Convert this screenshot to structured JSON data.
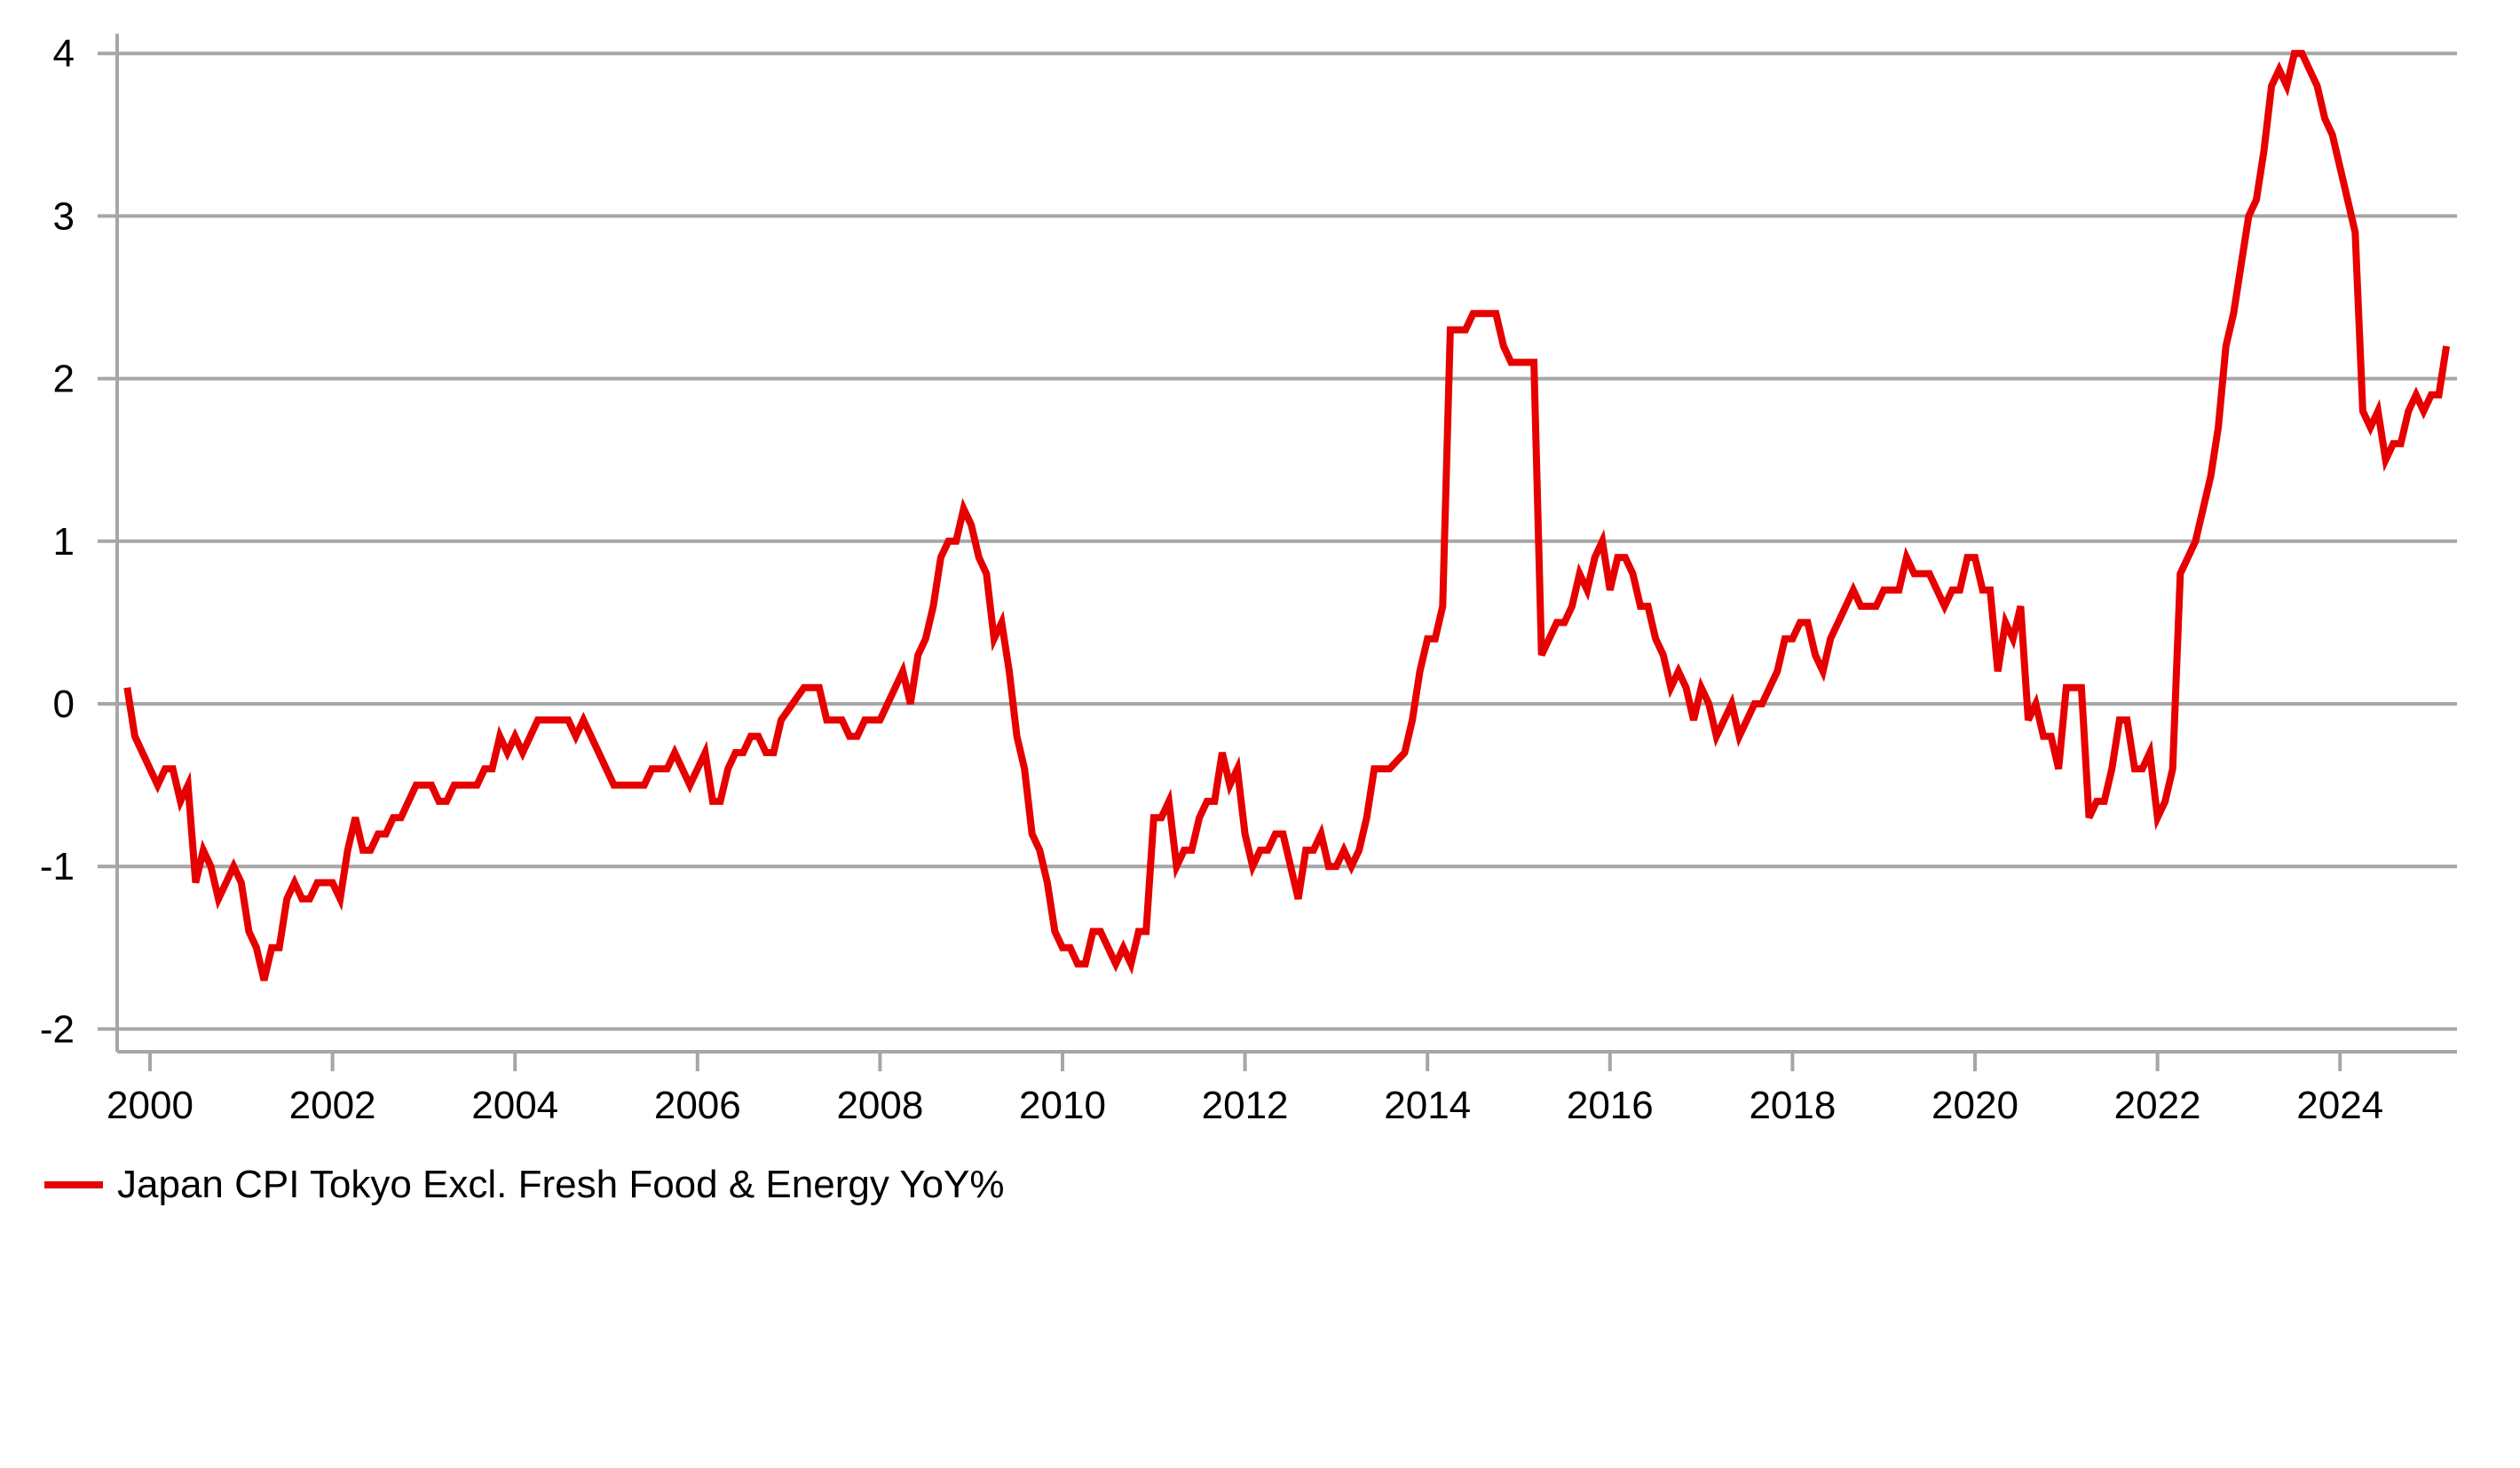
{
  "chart_data": {
    "type": "line",
    "title": "",
    "xlabel": "",
    "ylabel": "",
    "ylim": [
      -2,
      4
    ],
    "yticks": [
      "4",
      "3",
      "2",
      "1",
      "0",
      "-1",
      "-2"
    ],
    "xticks": [
      "2000",
      "2002",
      "2004",
      "2006",
      "2008",
      "2010",
      "2012",
      "2014",
      "2016",
      "2018",
      "2020",
      "2022",
      "2024"
    ],
    "grid": "horizontal",
    "legend_position": "bottom-left",
    "colors": {
      "series": "#e60000",
      "grid": "#a6a6a6"
    },
    "series": [
      {
        "name": "Japan CPI Tokyo Excl. Fresh Food & Energy YoY%",
        "points": [
          [
            "1999-10",
            0.1
          ],
          [
            "1999-11",
            -0.2
          ],
          [
            "2000-01",
            -0.4
          ],
          [
            "2000-02",
            -0.5
          ],
          [
            "2000-03",
            -0.4
          ],
          [
            "2000-04",
            -0.4
          ],
          [
            "2000-05",
            -0.6
          ],
          [
            "2000-06",
            -0.5
          ],
          [
            "2000-07",
            -1.1
          ],
          [
            "2000-08",
            -0.9
          ],
          [
            "2000-09",
            -1.0
          ],
          [
            "2000-10",
            -1.2
          ],
          [
            "2000-11",
            -1.1
          ],
          [
            "2000-12",
            -1.0
          ],
          [
            "2001-01",
            -1.1
          ],
          [
            "2001-02",
            -1.4
          ],
          [
            "2001-03",
            -1.5
          ],
          [
            "2001-04",
            -1.7
          ],
          [
            "2001-05",
            -1.5
          ],
          [
            "2001-06",
            -1.5
          ],
          [
            "2001-07",
            -1.2
          ],
          [
            "2001-08",
            -1.1
          ],
          [
            "2001-09",
            -1.2
          ],
          [
            "2001-10",
            -1.2
          ],
          [
            "2001-11",
            -1.1
          ],
          [
            "2002-01",
            -1.1
          ],
          [
            "2002-02",
            -1.2
          ],
          [
            "2002-03",
            -0.9
          ],
          [
            "2002-04",
            -0.7
          ],
          [
            "2002-05",
            -0.9
          ],
          [
            "2002-06",
            -0.9
          ],
          [
            "2002-07",
            -0.8
          ],
          [
            "2002-08",
            -0.8
          ],
          [
            "2002-09",
            -0.7
          ],
          [
            "2002-10",
            -0.7
          ],
          [
            "2002-12",
            -0.5
          ],
          [
            "2003-02",
            -0.5
          ],
          [
            "2003-03",
            -0.6
          ],
          [
            "2003-04",
            -0.6
          ],
          [
            "2003-05",
            -0.5
          ],
          [
            "2003-08",
            -0.5
          ],
          [
            "2003-09",
            -0.4
          ],
          [
            "2003-10",
            -0.4
          ],
          [
            "2003-11",
            -0.2
          ],
          [
            "2003-12",
            -0.3
          ],
          [
            "2004-01",
            -0.2
          ],
          [
            "2004-02",
            -0.3
          ],
          [
            "2004-04",
            -0.1
          ],
          [
            "2004-08",
            -0.1
          ],
          [
            "2004-09",
            -0.2
          ],
          [
            "2004-10",
            -0.1
          ],
          [
            "2004-11",
            -0.2
          ],
          [
            "2005-02",
            -0.5
          ],
          [
            "2005-06",
            -0.5
          ],
          [
            "2005-07",
            -0.4
          ],
          [
            "2005-09",
            -0.4
          ],
          [
            "2005-10",
            -0.3
          ],
          [
            "2005-11",
            -0.4
          ],
          [
            "2005-12",
            -0.5
          ],
          [
            "2006-02",
            -0.3
          ],
          [
            "2006-03",
            -0.6
          ],
          [
            "2006-04",
            -0.6
          ],
          [
            "2006-05",
            -0.4
          ],
          [
            "2006-06",
            -0.3
          ],
          [
            "2006-07",
            -0.3
          ],
          [
            "2006-08",
            -0.2
          ],
          [
            "2006-09",
            -0.2
          ],
          [
            "2006-10",
            -0.3
          ],
          [
            "2006-11",
            -0.3
          ],
          [
            "2006-12",
            -0.1
          ],
          [
            "2007-03",
            0.1
          ],
          [
            "2007-05",
            0.1
          ],
          [
            "2007-06",
            -0.1
          ],
          [
            "2007-08",
            -0.1
          ],
          [
            "2007-09",
            -0.2
          ],
          [
            "2007-10",
            -0.2
          ],
          [
            "2007-11",
            -0.1
          ],
          [
            "2008-01",
            -0.1
          ],
          [
            "2008-04",
            0.2
          ],
          [
            "2008-05",
            0.0
          ],
          [
            "2008-06",
            0.3
          ],
          [
            "2008-07",
            0.4
          ],
          [
            "2008-08",
            0.6
          ],
          [
            "2008-09",
            0.9
          ],
          [
            "2008-10",
            1.0
          ],
          [
            "2008-11",
            1.0
          ],
          [
            "2008-12",
            1.2
          ],
          [
            "2009-01",
            1.1
          ],
          [
            "2009-02",
            0.9
          ],
          [
            "2009-03",
            0.8
          ],
          [
            "2009-04",
            0.4
          ],
          [
            "2009-05",
            0.5
          ],
          [
            "2009-06",
            0.2
          ],
          [
            "2009-07",
            -0.2
          ],
          [
            "2009-08",
            -0.4
          ],
          [
            "2009-09",
            -0.8
          ],
          [
            "2009-10",
            -0.9
          ],
          [
            "2009-11",
            -1.1
          ],
          [
            "2009-12",
            -1.4
          ],
          [
            "2010-01",
            -1.5
          ],
          [
            "2010-02",
            -1.5
          ],
          [
            "2010-03",
            -1.6
          ],
          [
            "2010-04",
            -1.6
          ],
          [
            "2010-05",
            -1.4
          ],
          [
            "2010-06",
            -1.4
          ],
          [
            "2010-07",
            -1.5
          ],
          [
            "2010-08",
            -1.6
          ],
          [
            "2010-09",
            -1.5
          ],
          [
            "2010-10",
            -1.6
          ],
          [
            "2010-11",
            -1.4
          ],
          [
            "2010-12",
            -1.4
          ],
          [
            "2011-01",
            -0.7
          ],
          [
            "2011-02",
            -0.7
          ],
          [
            "2011-03",
            -0.6
          ],
          [
            "2011-04",
            -1.0
          ],
          [
            "2011-05",
            -0.9
          ],
          [
            "2011-06",
            -0.9
          ],
          [
            "2011-07",
            -0.7
          ],
          [
            "2011-08",
            -0.6
          ],
          [
            "2011-09",
            -0.6
          ],
          [
            "2011-10",
            -0.3
          ],
          [
            "2011-11",
            -0.5
          ],
          [
            "2011-12",
            -0.4
          ],
          [
            "2012-01",
            -0.8
          ],
          [
            "2012-02",
            -1.0
          ],
          [
            "2012-03",
            -0.9
          ],
          [
            "2012-04",
            -0.9
          ],
          [
            "2012-05",
            -0.8
          ],
          [
            "2012-06",
            -0.8
          ],
          [
            "2012-07",
            -1.0
          ],
          [
            "2012-08",
            -1.2
          ],
          [
            "2012-09",
            -0.9
          ],
          [
            "2012-10",
            -0.9
          ],
          [
            "2012-11",
            -0.8
          ],
          [
            "2012-12",
            -1.0
          ],
          [
            "2013-01",
            -1.0
          ],
          [
            "2013-02",
            -0.9
          ],
          [
            "2013-03",
            -1.0
          ],
          [
            "2013-04",
            -0.9
          ],
          [
            "2013-05",
            -0.7
          ],
          [
            "2013-06",
            -0.4
          ],
          [
            "2013-08",
            -0.4
          ],
          [
            "2013-10",
            -0.3
          ],
          [
            "2013-11",
            -0.1
          ],
          [
            "2013-12",
            0.2
          ],
          [
            "2014-01",
            0.4
          ],
          [
            "2014-02",
            0.4
          ],
          [
            "2014-03",
            0.6
          ],
          [
            "2014-04",
            2.3
          ],
          [
            "2014-05",
            2.3
          ],
          [
            "2014-06",
            2.3
          ],
          [
            "2014-07",
            2.4
          ],
          [
            "2014-10",
            2.4
          ],
          [
            "2014-11",
            2.2
          ],
          [
            "2014-12",
            2.1
          ],
          [
            "2015-03",
            2.1
          ],
          [
            "2015-04",
            0.3
          ],
          [
            "2015-05",
            0.4
          ],
          [
            "2015-06",
            0.5
          ],
          [
            "2015-07",
            0.5
          ],
          [
            "2015-08",
            0.6
          ],
          [
            "2015-09",
            0.8
          ],
          [
            "2015-10",
            0.7
          ],
          [
            "2015-11",
            0.9
          ],
          [
            "2015-12",
            1.0
          ],
          [
            "2016-01",
            0.7
          ],
          [
            "2016-02",
            0.9
          ],
          [
            "2016-03",
            0.9
          ],
          [
            "2016-04",
            0.8
          ],
          [
            "2016-05",
            0.6
          ],
          [
            "2016-06",
            0.6
          ],
          [
            "2016-07",
            0.4
          ],
          [
            "2016-08",
            0.3
          ],
          [
            "2016-09",
            0.1
          ],
          [
            "2016-10",
            0.2
          ],
          [
            "2016-11",
            0.1
          ],
          [
            "2016-12",
            -0.1
          ],
          [
            "2017-01",
            0.1
          ],
          [
            "2017-02",
            0.0
          ],
          [
            "2017-03",
            -0.2
          ],
          [
            "2017-04",
            -0.1
          ],
          [
            "2017-05",
            0.0
          ],
          [
            "2017-06",
            -0.2
          ],
          [
            "2017-07",
            -0.1
          ],
          [
            "2017-08",
            0.0
          ],
          [
            "2017-09",
            0.0
          ],
          [
            "2017-10",
            0.1
          ],
          [
            "2017-11",
            0.2
          ],
          [
            "2017-12",
            0.4
          ],
          [
            "2018-01",
            0.4
          ],
          [
            "2018-02",
            0.5
          ],
          [
            "2018-03",
            0.5
          ],
          [
            "2018-04",
            0.3
          ],
          [
            "2018-05",
            0.2
          ],
          [
            "2018-06",
            0.4
          ],
          [
            "2018-07",
            0.5
          ],
          [
            "2018-08",
            0.6
          ],
          [
            "2018-09",
            0.7
          ],
          [
            "2018-10",
            0.6
          ],
          [
            "2018-11",
            0.6
          ],
          [
            "2018-12",
            0.6
          ],
          [
            "2019-01",
            0.7
          ],
          [
            "2019-02",
            0.7
          ],
          [
            "2019-03",
            0.7
          ],
          [
            "2019-04",
            0.9
          ],
          [
            "2019-05",
            0.8
          ],
          [
            "2019-06",
            0.8
          ],
          [
            "2019-07",
            0.8
          ],
          [
            "2019-08",
            0.7
          ],
          [
            "2019-09",
            0.6
          ],
          [
            "2019-10",
            0.7
          ],
          [
            "2019-11",
            0.7
          ],
          [
            "2019-12",
            0.9
          ],
          [
            "2020-01",
            0.9
          ],
          [
            "2020-02",
            0.7
          ],
          [
            "2020-03",
            0.7
          ],
          [
            "2020-04",
            0.2
          ],
          [
            "2020-05",
            0.5
          ],
          [
            "2020-06",
            0.4
          ],
          [
            "2020-07",
            0.6
          ],
          [
            "2020-08",
            -0.1
          ],
          [
            "2020-09",
            0.0
          ],
          [
            "2020-10",
            -0.2
          ],
          [
            "2020-11",
            -0.2
          ],
          [
            "2020-12",
            -0.4
          ],
          [
            "2021-01",
            0.1
          ],
          [
            "2021-02",
            0.1
          ],
          [
            "2021-03",
            0.1
          ],
          [
            "2021-04",
            -0.7
          ],
          [
            "2021-05",
            -0.6
          ],
          [
            "2021-06",
            -0.6
          ],
          [
            "2021-07",
            -0.4
          ],
          [
            "2021-08",
            -0.1
          ],
          [
            "2021-09",
            -0.1
          ],
          [
            "2021-10",
            -0.4
          ],
          [
            "2021-11",
            -0.4
          ],
          [
            "2021-12",
            -0.3
          ],
          [
            "2022-01",
            -0.7
          ],
          [
            "2022-02",
            -0.6
          ],
          [
            "2022-03",
            -0.4
          ],
          [
            "2022-04",
            0.8
          ],
          [
            "2022-05",
            0.9
          ],
          [
            "2022-06",
            1.0
          ],
          [
            "2022-07",
            1.2
          ],
          [
            "2022-08",
            1.4
          ],
          [
            "2022-09",
            1.7
          ],
          [
            "2022-10",
            2.2
          ],
          [
            "2022-11",
            2.4
          ],
          [
            "2022-12",
            2.7
          ],
          [
            "2023-01",
            3.0
          ],
          [
            "2023-02",
            3.1
          ],
          [
            "2023-03",
            3.4
          ],
          [
            "2023-04",
            3.8
          ],
          [
            "2023-05",
            3.9
          ],
          [
            "2023-06",
            3.8
          ],
          [
            "2023-07",
            4.0
          ],
          [
            "2023-08",
            4.0
          ],
          [
            "2023-09",
            3.9
          ],
          [
            "2023-10",
            3.8
          ],
          [
            "2023-11",
            3.6
          ],
          [
            "2023-12",
            3.5
          ],
          [
            "2024-01",
            3.3
          ],
          [
            "2024-02",
            3.1
          ],
          [
            "2024-03",
            2.9
          ],
          [
            "2024-04",
            1.8
          ],
          [
            "2024-05",
            1.7
          ],
          [
            "2024-06",
            1.8
          ],
          [
            "2024-07",
            1.5
          ],
          [
            "2024-08",
            1.6
          ],
          [
            "2024-09",
            1.6
          ],
          [
            "2024-10",
            1.8
          ],
          [
            "2024-11",
            1.9
          ],
          [
            "2024-12",
            1.8
          ],
          [
            "2025-01",
            1.9
          ],
          [
            "2025-02",
            1.9
          ],
          [
            "2025-03",
            2.2
          ]
        ]
      }
    ]
  }
}
